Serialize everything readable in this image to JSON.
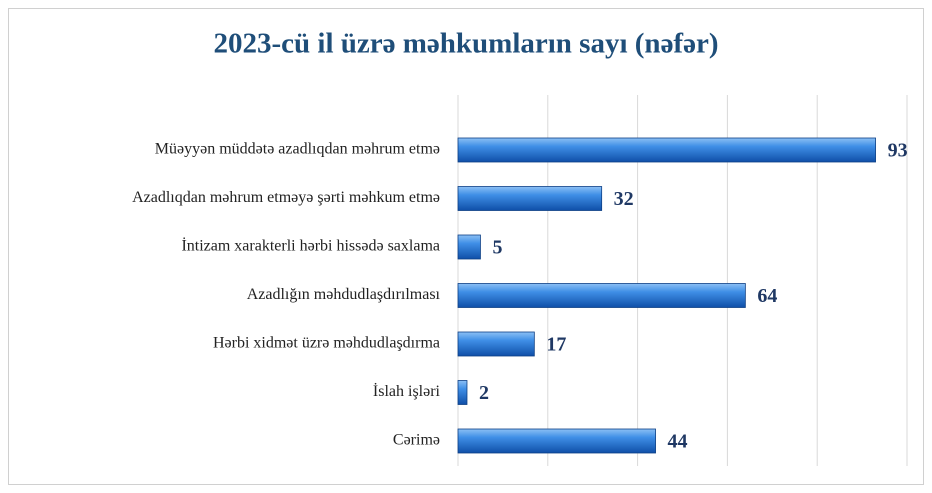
{
  "chart_data": {
    "type": "bar",
    "orientation": "horizontal",
    "title": "2023-cü il üzrə məhkumların sayı (nəfər)",
    "categories": [
      "Müəyyən müddətə azadlıqdan məhrum etmə",
      "Azadlıqdan məhrum etməyə şərti məhkum etmə",
      "İntizam xarakterli hərbi hissədə saxlama",
      "Azadlığın məhdudlaşdırılması",
      "Hərbi xidmət üzrə məhdudlaşdırma",
      "İslah işləri",
      "Cərimə"
    ],
    "values": [
      93,
      32,
      5,
      64,
      17,
      2,
      44
    ],
    "color": "#1f6fd0",
    "xlim": [
      0,
      100
    ],
    "xticks": [
      0,
      20,
      40,
      60,
      80,
      100
    ],
    "grid": true
  }
}
